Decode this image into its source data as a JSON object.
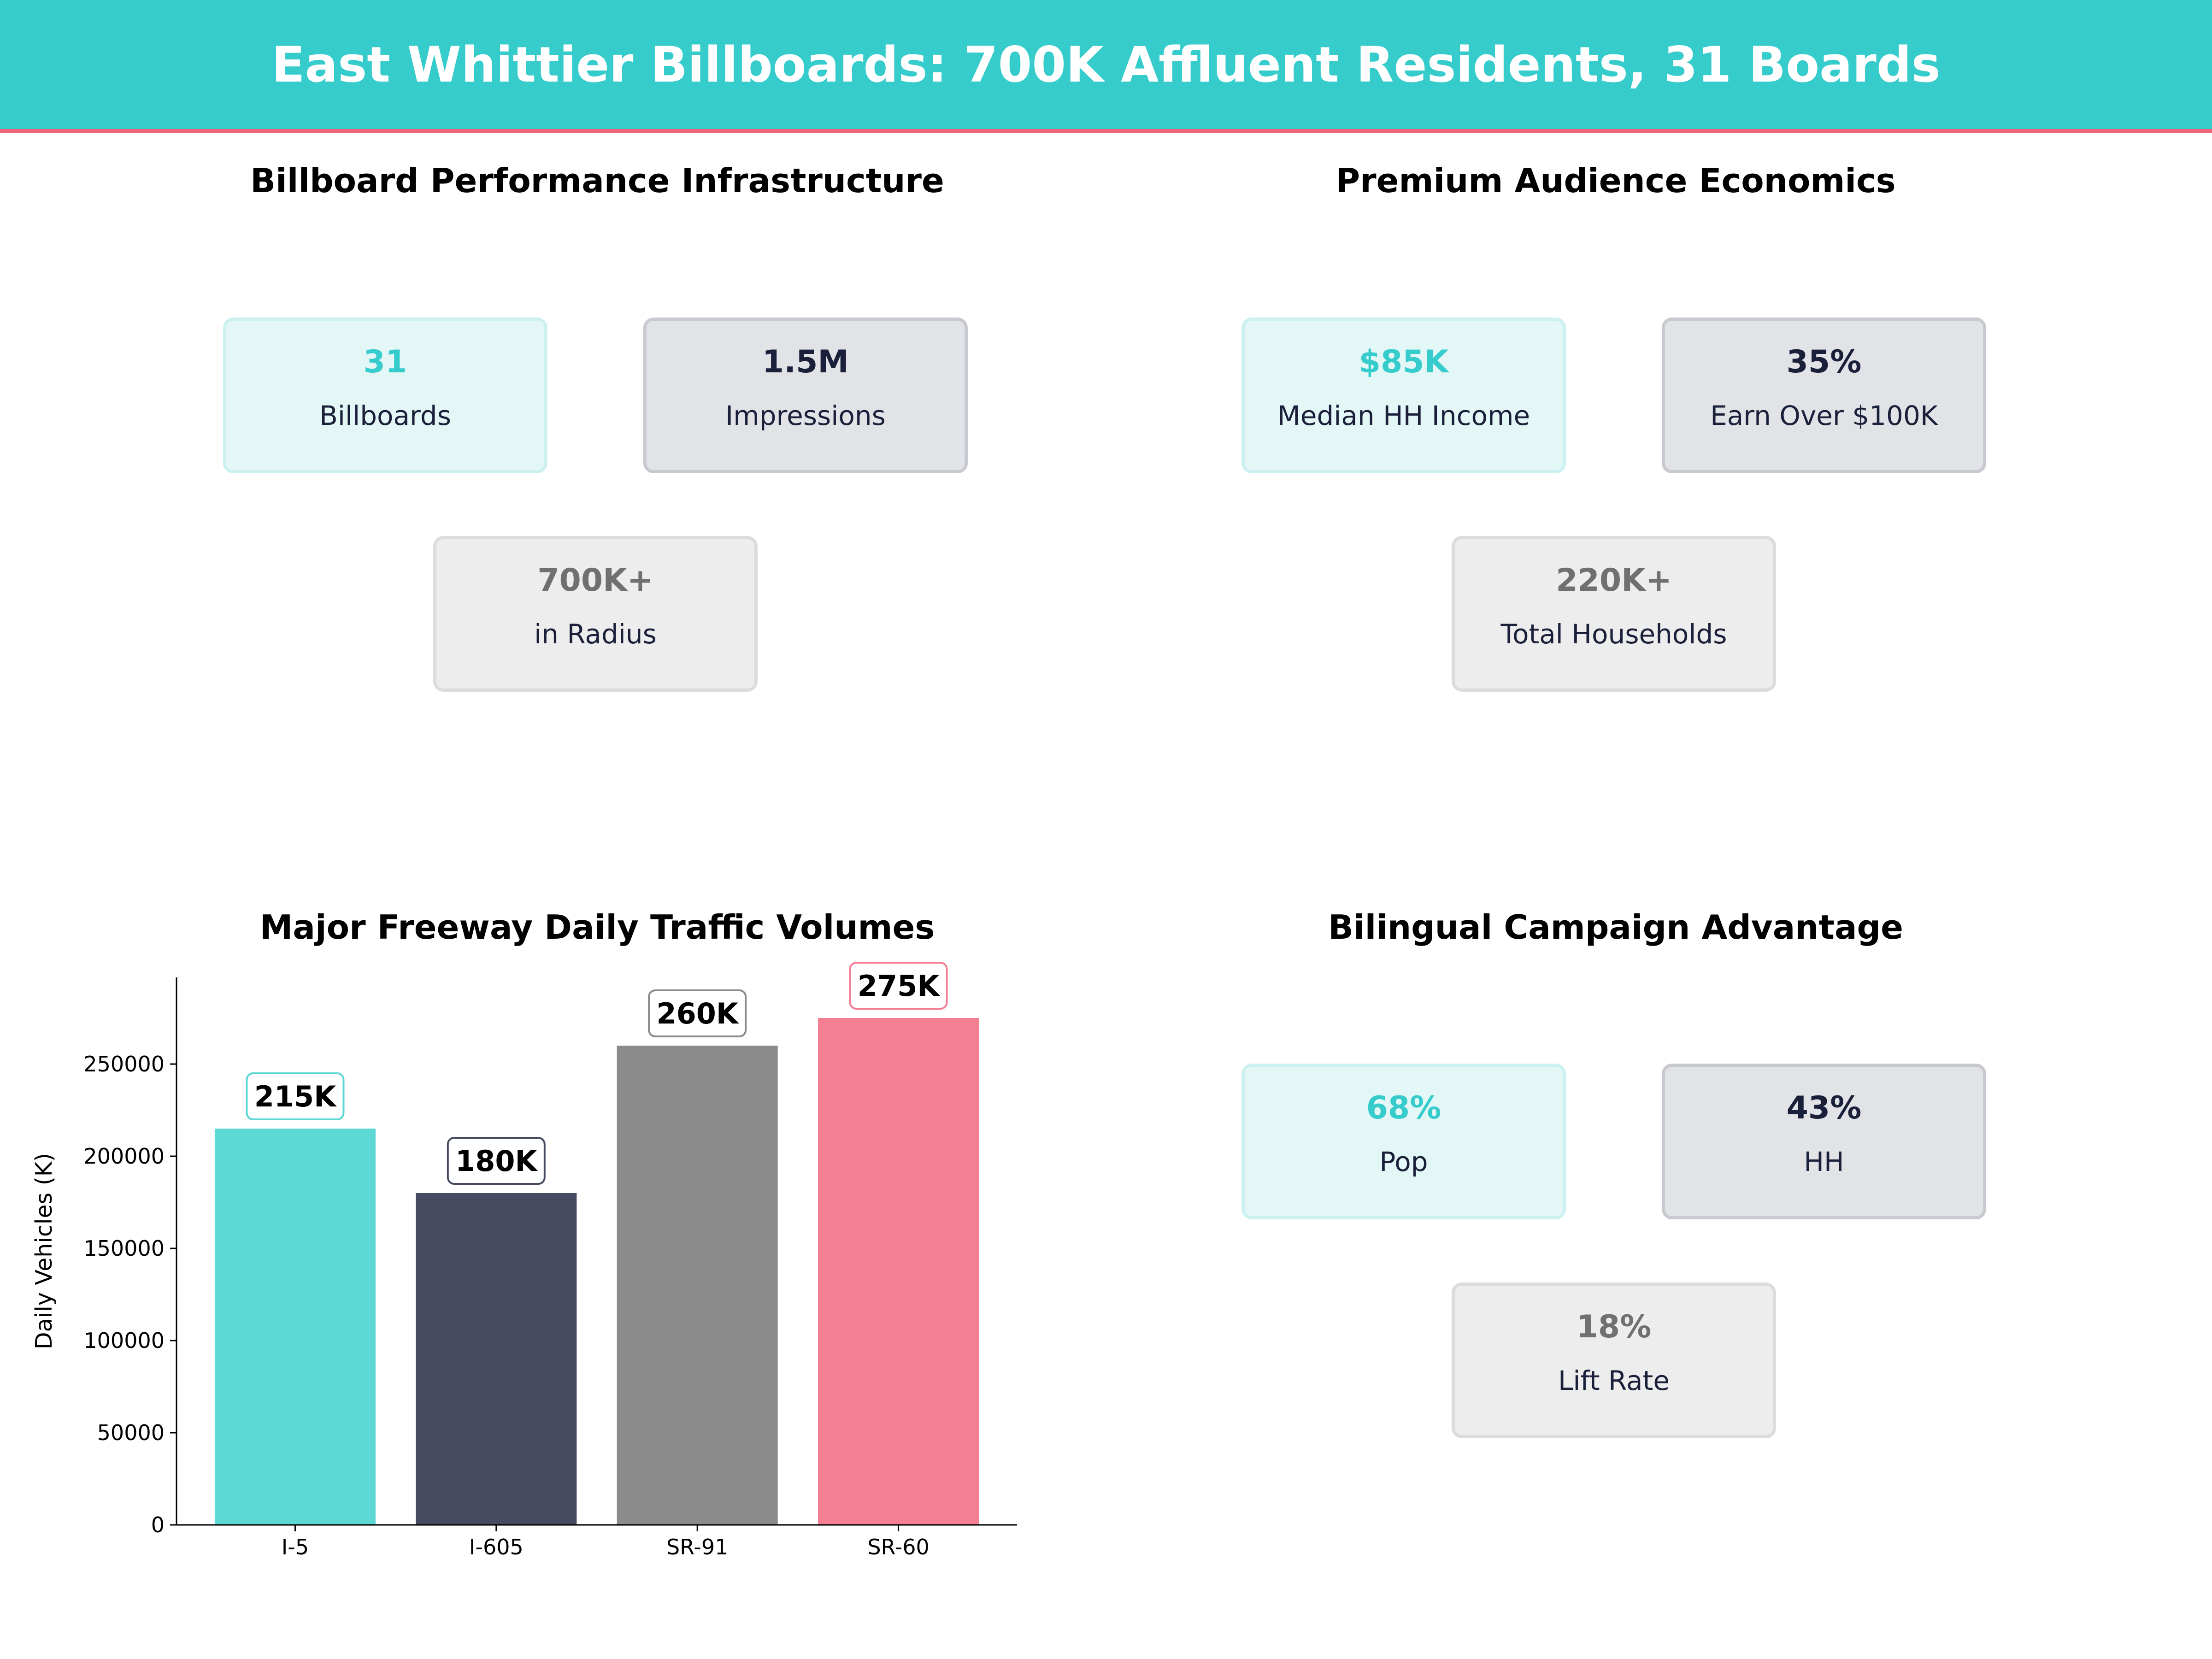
{
  "header": {
    "title": "East Whittier Billboards: 700K Affluent Residents, 31 Boards"
  },
  "colors": {
    "header": "#36CCCC",
    "accent_line": "#EF6479",
    "teal": "#36CCCC",
    "navy": "#1A1F3A",
    "gray": "#707070"
  },
  "panels": [
    {
      "title": "Billboard Performance Infrastructure",
      "cards": [
        {
          "value": "31",
          "label": "Billboards"
        },
        {
          "value": "1.5M",
          "label": "Impressions"
        },
        {
          "value": "700K+",
          "label": "in Radius"
        }
      ]
    },
    {
      "title": "Premium Audience Economics",
      "cards": [
        {
          "value": "$85K",
          "label": "Median HH Income"
        },
        {
          "value": "35%",
          "label": "Earn Over $100K"
        },
        {
          "value": "220K+",
          "label": "Total Households"
        }
      ]
    },
    {
      "title": "Bilingual Campaign Advantage",
      "cards": [
        {
          "value": "68%",
          "label": "Pop"
        },
        {
          "value": "43%",
          "label": "HH"
        },
        {
          "value": "18%",
          "label": "Lift Rate"
        }
      ]
    }
  ],
  "chart_data": {
    "type": "bar",
    "title": "Major Freeway Daily Traffic Volumes",
    "xlabel": "",
    "ylabel": "Daily Vehicles (K)",
    "categories": [
      "I-5",
      "I-605",
      "SR-91",
      "SR-60"
    ],
    "values": [
      215000,
      180000,
      260000,
      275000
    ],
    "data_labels": [
      "215K",
      "180K",
      "260K",
      "275K"
    ],
    "colors": [
      "#5DD8D5",
      "#474B62",
      "#8B8B8B",
      "#F47E92"
    ],
    "label_border_colors": [
      "#5DD8D5",
      "#474B62",
      "#8B8B8B",
      "#F47E92"
    ],
    "ylim": [
      0,
      297000
    ],
    "yticks": [
      0,
      50000,
      100000,
      150000,
      200000,
      250000
    ],
    "ytick_labels": [
      "0",
      "50000",
      "100000",
      "150000",
      "200000",
      "250000"
    ],
    "grid": false
  }
}
